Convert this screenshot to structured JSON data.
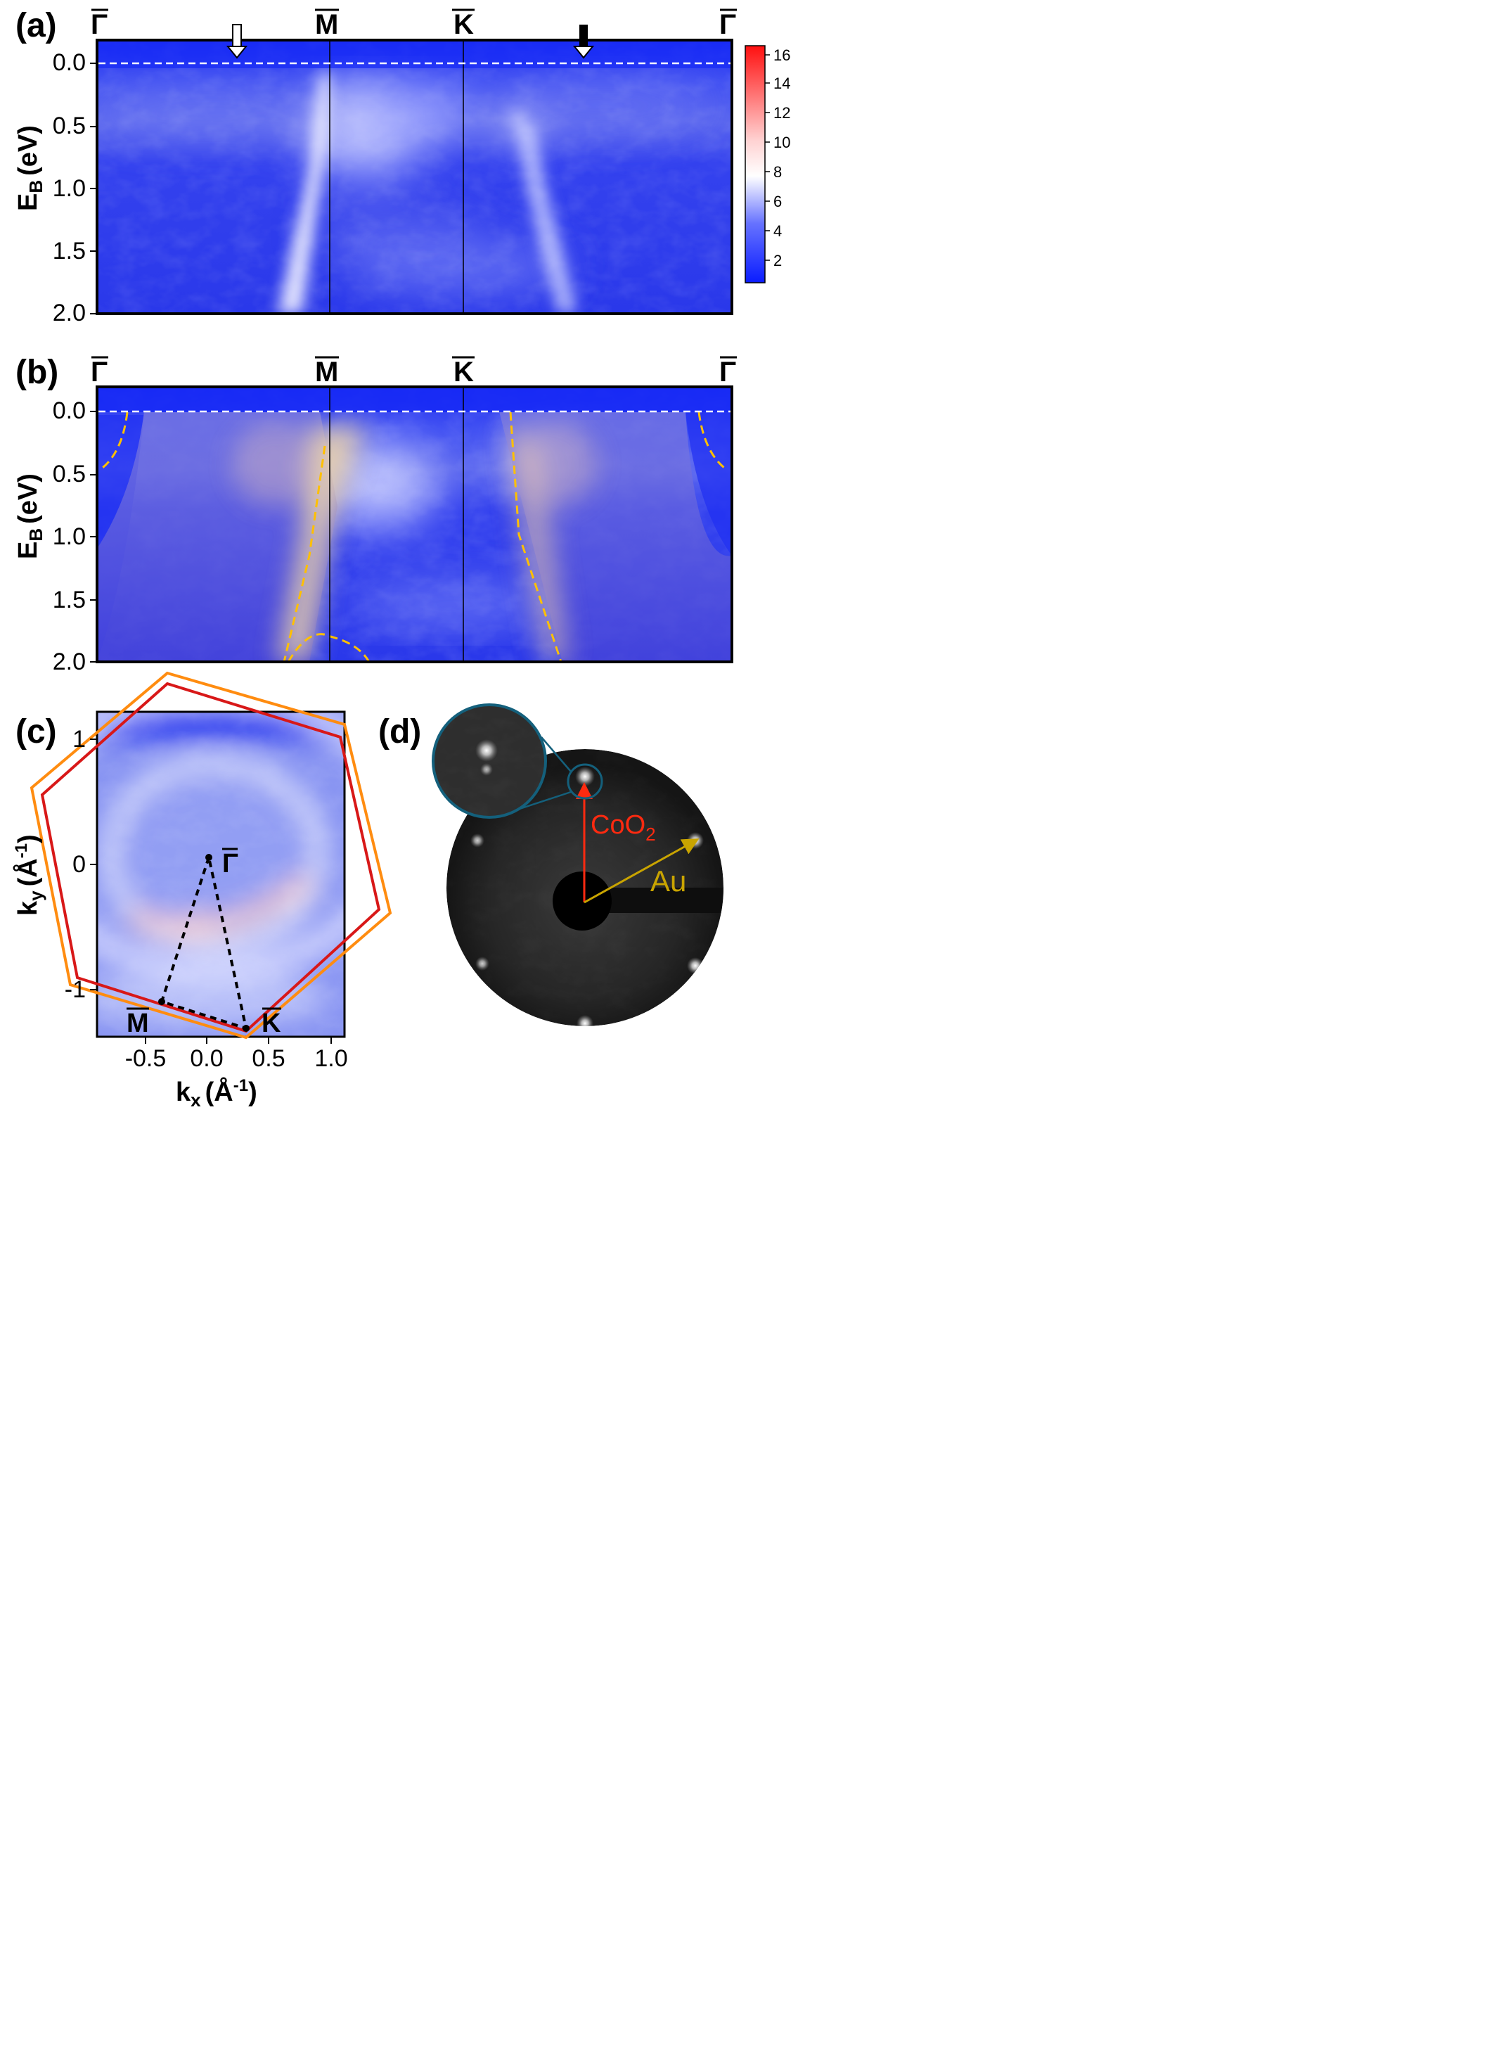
{
  "panel_a": {
    "label": "(a)",
    "points": [
      "Γ",
      "M",
      "K",
      "Γ"
    ],
    "ylabel_main": "E",
    "ylabel_sub": "B",
    "ylabel_unit": "(eV)",
    "yticks": [
      "0.0",
      "0.5",
      "1.0",
      "1.5",
      "2.0"
    ]
  },
  "colorbar": {
    "ticks": [
      "2",
      "4",
      "6",
      "8",
      "10",
      "12",
      "14",
      "16"
    ]
  },
  "panel_b": {
    "label": "(b)",
    "points": [
      "Γ",
      "M",
      "K",
      "Γ"
    ],
    "ylabel_main": "E",
    "ylabel_sub": "B",
    "ylabel_unit": "(eV)",
    "yticks": [
      "0.0",
      "0.5",
      "1.0",
      "1.5",
      "2.0"
    ]
  },
  "panel_c": {
    "label": "(c)",
    "ylabel_main": "k",
    "ylabel_sub": "y",
    "ylabel_unit": "(Å",
    "ylabel_exp": "-1",
    "ylabel_close": ")",
    "xlabel_main": "k",
    "xlabel_sub": "x",
    "xlabel_unit": "(Å",
    "xlabel_exp": "-1",
    "xlabel_close": ")",
    "xticks": [
      "-0.5",
      "0.0",
      "0.5",
      "1.0"
    ],
    "yticks": [
      "1",
      "0",
      "-1"
    ],
    "point_gamma": "Γ",
    "point_m": "M",
    "point_k": "K"
  },
  "panel_d": {
    "label": "(d)",
    "coo2_main": "CoO",
    "coo2_sub": "2",
    "au": "Au"
  },
  "colors": {
    "low": "#1a1aff",
    "mid": "#ffffff",
    "high": "#ff1a1a",
    "dashed_fit": "#ffc000",
    "hex_red": "#d81818",
    "hex_orange": "#ff8c10",
    "arrow_coo2": "#ff2a10",
    "arrow_au": "#c9a400",
    "zoom_ring": "#14607c"
  }
}
